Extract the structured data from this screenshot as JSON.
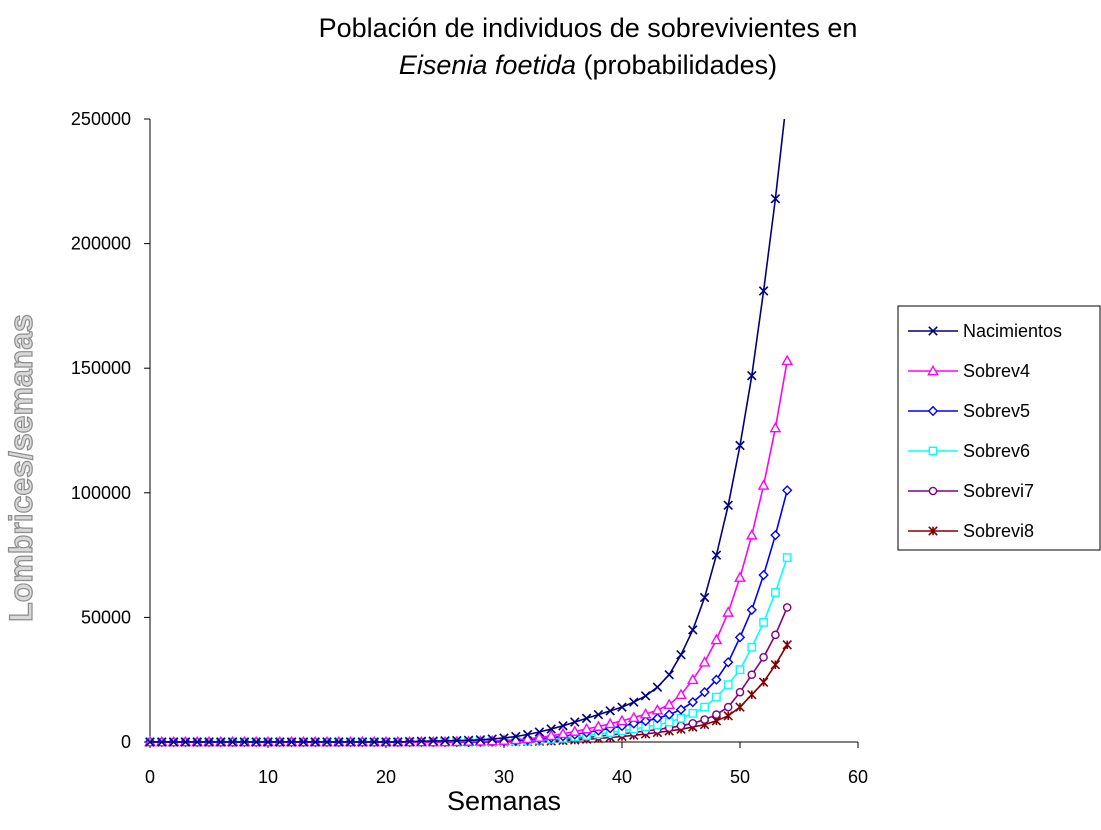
{
  "chart_data": {
    "type": "line",
    "title_line1": "Población de individuos de sobrevivientes en",
    "title_line2_italic": "Eisenia foetida",
    "title_line2_rest": " (probabilidades)",
    "xlabel": "Semanas",
    "ylabel": "Lombrices/semanas",
    "xlim": [
      0,
      60
    ],
    "ylim": [
      0,
      250000
    ],
    "x_ticks": [
      0,
      10,
      20,
      30,
      40,
      50,
      60
    ],
    "y_ticks": [
      0,
      50000,
      100000,
      150000,
      200000,
      250000
    ],
    "grid": false,
    "legend_position": "right",
    "x": [
      0,
      1,
      2,
      3,
      4,
      5,
      6,
      7,
      8,
      9,
      10,
      11,
      12,
      13,
      14,
      15,
      16,
      17,
      18,
      19,
      20,
      21,
      22,
      23,
      24,
      25,
      26,
      27,
      28,
      29,
      30,
      31,
      32,
      33,
      34,
      35,
      36,
      37,
      38,
      39,
      40,
      41,
      42,
      43,
      44,
      45,
      46,
      47,
      48,
      49,
      50,
      51,
      52,
      53,
      54
    ],
    "series": [
      {
        "name": "Nacimientos",
        "color": "#000080",
        "marker": "x",
        "values": [
          0,
          0,
          0,
          0,
          0,
          0,
          0,
          0,
          0,
          0,
          0,
          0,
          0,
          0,
          0,
          0,
          0,
          0,
          0,
          0,
          0,
          0,
          200,
          300,
          400,
          500,
          600,
          700,
          900,
          1200,
          1600,
          2200,
          3000,
          4000,
          5200,
          6500,
          8000,
          9500,
          11000,
          12500,
          14000,
          16000,
          18500,
          22000,
          27000,
          35000,
          45000,
          58000,
          75000,
          95000,
          119000,
          147000,
          181000,
          218000,
          260000
        ]
      },
      {
        "name": "Sobrev4",
        "color": "#ff00ff",
        "marker": "triangle",
        "values": [
          0,
          0,
          0,
          0,
          0,
          0,
          0,
          0,
          0,
          0,
          0,
          0,
          0,
          0,
          0,
          0,
          0,
          0,
          0,
          0,
          0,
          0,
          0,
          0,
          0,
          0,
          100,
          200,
          300,
          400,
          600,
          900,
          1300,
          1800,
          2500,
          3300,
          4200,
          5200,
          6200,
          7300,
          8500,
          9800,
          11200,
          12800,
          15000,
          19000,
          25000,
          32000,
          41000,
          52000,
          66000,
          83000,
          103000,
          126000,
          153000
        ]
      },
      {
        "name": "Sobrev5",
        "color": "#0000ff",
        "marker": "diamond",
        "values": [
          0,
          0,
          0,
          0,
          0,
          0,
          0,
          0,
          0,
          0,
          0,
          0,
          0,
          0,
          0,
          0,
          0,
          0,
          0,
          0,
          0,
          0,
          0,
          0,
          0,
          0,
          0,
          0,
          100,
          200,
          300,
          500,
          800,
          1200,
          1700,
          2300,
          3000,
          3800,
          4600,
          5500,
          6400,
          7400,
          8400,
          9500,
          11000,
          13000,
          16000,
          20000,
          25000,
          32000,
          42000,
          53000,
          67000,
          83000,
          101000
        ]
      },
      {
        "name": "Sobrev6",
        "color": "#00ffff",
        "marker": "square",
        "values": [
          0,
          0,
          0,
          0,
          0,
          0,
          0,
          0,
          0,
          0,
          0,
          0,
          0,
          0,
          0,
          0,
          0,
          0,
          0,
          0,
          0,
          0,
          0,
          0,
          0,
          0,
          0,
          0,
          0,
          100,
          200,
          300,
          500,
          800,
          1100,
          1500,
          2000,
          2600,
          3200,
          3800,
          4500,
          5200,
          6000,
          6900,
          8000,
          9500,
          11500,
          14000,
          18000,
          23000,
          29000,
          38000,
          48000,
          60000,
          74000
        ]
      },
      {
        "name": "Sobrevi7",
        "color": "#800080",
        "marker": "circle",
        "values": [
          0,
          0,
          0,
          0,
          0,
          0,
          0,
          0,
          0,
          0,
          0,
          0,
          0,
          0,
          0,
          0,
          0,
          0,
          0,
          0,
          0,
          0,
          0,
          0,
          0,
          0,
          0,
          0,
          0,
          0,
          100,
          200,
          300,
          500,
          700,
          1000,
          1400,
          1800,
          2300,
          2800,
          3300,
          3800,
          4400,
          5000,
          5700,
          6500,
          7500,
          9000,
          11000,
          14000,
          20000,
          27000,
          34000,
          43000,
          54000
        ]
      },
      {
        "name": "Sobrevi8",
        "color": "#800000",
        "marker": "star",
        "values": [
          0,
          0,
          0,
          0,
          0,
          0,
          0,
          0,
          0,
          0,
          0,
          0,
          0,
          0,
          0,
          0,
          0,
          0,
          0,
          0,
          0,
          0,
          0,
          0,
          0,
          0,
          0,
          0,
          0,
          0,
          0,
          100,
          200,
          300,
          400,
          600,
          800,
          1100,
          1400,
          1800,
          2200,
          2700,
          3200,
          3800,
          4400,
          5100,
          6000,
          7000,
          8500,
          10500,
          14000,
          19000,
          24000,
          31000,
          39000
        ]
      }
    ]
  }
}
